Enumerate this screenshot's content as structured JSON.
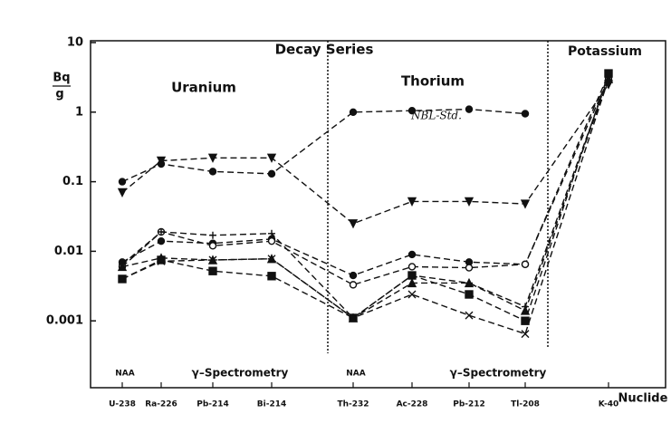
{
  "chart_data": {
    "type": "line",
    "ylabel_top": "Bq",
    "ylabel_bottom": "g",
    "xlabel": "Nuclide",
    "categories": [
      "U-238",
      "Ra-226",
      "Pb-214",
      "Bi-214",
      "Th-232",
      "Ac-228",
      "Pb-212",
      "Tl-208",
      "K-40"
    ],
    "annotations": [
      "Decay Series",
      "Uranium",
      "Thorium",
      "Potassium",
      "NAA",
      "γ–Spectrometry",
      "NAA",
      "γ–Spectrometry",
      "NBL-Std."
    ],
    "ylog": true,
    "ylim": [
      0.0001,
      10
    ],
    "yticks": [
      0.001,
      0.01,
      0.1,
      1,
      10
    ],
    "series": [
      {
        "color": "#111111",
        "marker": "circle-filled",
        "values": [
          0.1,
          0.18,
          0.14,
          0.13,
          1.0,
          1.05,
          1.1,
          0.95,
          null
        ]
      },
      {
        "color": "#111111",
        "marker": "triangle-down",
        "values": [
          0.07,
          0.2,
          0.22,
          0.22,
          0.025,
          0.052,
          0.052,
          0.048,
          2.5
        ]
      },
      {
        "color": "#111111",
        "marker": "circle-filled",
        "values": [
          0.007,
          0.014,
          0.013,
          0.015,
          0.0045,
          0.009,
          0.007,
          0.0065,
          3.5
        ]
      },
      {
        "color": "#111111",
        "marker": "circle-open",
        "values": [
          0.006,
          0.019,
          0.012,
          0.014,
          0.0033,
          0.006,
          0.0058,
          0.0065,
          3.0
        ]
      },
      {
        "color": "#111111",
        "marker": "plus",
        "values": [
          0.0065,
          0.019,
          0.017,
          0.018,
          0.0011,
          0.0045,
          0.0035,
          0.0016,
          3.2
        ]
      },
      {
        "color": "#111111",
        "marker": "triangle-up",
        "values": [
          0.006,
          0.008,
          0.0075,
          0.0078,
          0.0011,
          0.0035,
          0.0035,
          0.0014,
          3.0
        ]
      },
      {
        "color": "#111111",
        "marker": "square",
        "values": [
          0.004,
          0.0075,
          0.0052,
          0.0044,
          0.0011,
          0.0045,
          0.0024,
          0.001,
          3.6
        ]
      },
      {
        "color": "#111111",
        "marker": "cross",
        "values": [
          0.004,
          0.0072,
          0.0075,
          0.0078,
          0.0011,
          0.0024,
          0.0012,
          0.00065,
          3.0
        ]
      }
    ]
  }
}
